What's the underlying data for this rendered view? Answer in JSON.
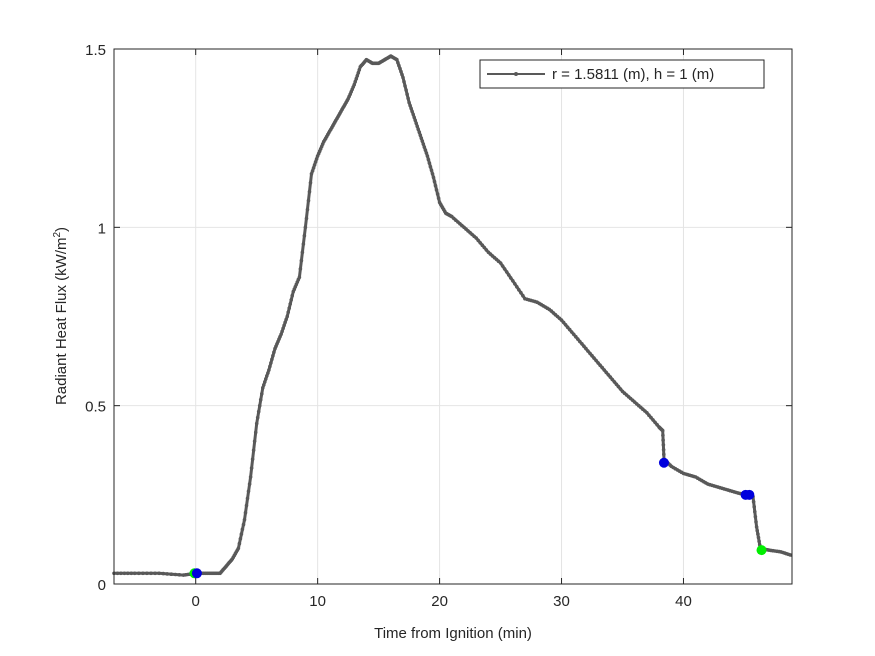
{
  "chart_data": {
    "type": "line",
    "title": "",
    "xlabel": "Time from Ignition (min)",
    "ylabel_main": "Radiant Heat Flux (kW/m",
    "ylabel_sup": "2",
    "ylabel_close": ")",
    "xlim": [
      -6.7,
      48.9
    ],
    "ylim": [
      0,
      1.5
    ],
    "xticks": [
      0,
      10,
      20,
      30,
      40
    ],
    "xtick_labels": [
      "0",
      "10",
      "20",
      "30",
      "40"
    ],
    "yticks": [
      0,
      0.5,
      1,
      1.5
    ],
    "ytick_labels": [
      "0",
      "0.5",
      "1",
      "1.5"
    ],
    "grid": true,
    "legend_position": "top-right",
    "series": [
      {
        "name": "r = 1.5811 (m), h = 1 (m)",
        "color": "#595959",
        "x": [
          -6.7,
          -5,
          -3,
          -1,
          0,
          1,
          2,
          2.5,
          3,
          3.5,
          4,
          4.5,
          5,
          5.5,
          6,
          6.5,
          7,
          7.5,
          8,
          8.5,
          9,
          9.5,
          10,
          10.5,
          11,
          11.5,
          12,
          12.5,
          13,
          13.5,
          14,
          14.5,
          15,
          15.5,
          16,
          16.5,
          17,
          17.5,
          18,
          18.5,
          19,
          19.5,
          20,
          20.5,
          21,
          22,
          23,
          24,
          25,
          26,
          27,
          28,
          29,
          30,
          31,
          32,
          33,
          34,
          35,
          36,
          37,
          38,
          38.3,
          38.4,
          39,
          40,
          41,
          42,
          43,
          44,
          45,
          45.3,
          45.7,
          46,
          46.3,
          47,
          48,
          48.9
        ],
        "y": [
          0.03,
          0.03,
          0.03,
          0.025,
          0.03,
          0.03,
          0.03,
          0.05,
          0.07,
          0.1,
          0.18,
          0.3,
          0.45,
          0.55,
          0.6,
          0.66,
          0.7,
          0.75,
          0.82,
          0.86,
          1.0,
          1.15,
          1.2,
          1.24,
          1.27,
          1.3,
          1.33,
          1.36,
          1.4,
          1.45,
          1.47,
          1.46,
          1.46,
          1.47,
          1.48,
          1.47,
          1.42,
          1.35,
          1.3,
          1.25,
          1.2,
          1.14,
          1.07,
          1.04,
          1.03,
          1.0,
          0.97,
          0.93,
          0.9,
          0.85,
          0.8,
          0.79,
          0.77,
          0.74,
          0.7,
          0.66,
          0.62,
          0.58,
          0.54,
          0.51,
          0.48,
          0.44,
          0.43,
          0.35,
          0.33,
          0.31,
          0.3,
          0.28,
          0.27,
          0.26,
          0.25,
          0.245,
          0.245,
          0.16,
          0.1,
          0.095,
          0.09,
          0.08
        ]
      }
    ],
    "markers": [
      {
        "x": -0.1,
        "y": 0.03,
        "color": "#00ee00"
      },
      {
        "x": 0.1,
        "y": 0.03,
        "color": "#0000dd"
      },
      {
        "x": 38.4,
        "y": 0.34,
        "color": "#0000dd"
      },
      {
        "x": 45.1,
        "y": 0.25,
        "color": "#0000dd"
      },
      {
        "x": 45.4,
        "y": 0.25,
        "color": "#0000dd"
      },
      {
        "x": 46.4,
        "y": 0.095,
        "color": "#00ee00"
      }
    ]
  }
}
